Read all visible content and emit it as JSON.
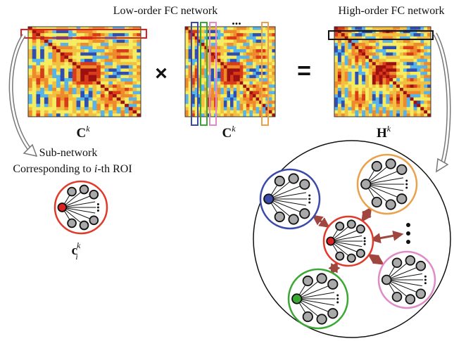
{
  "titles": {
    "low_order": "Low-order FC network",
    "high_order": "High-order FC network"
  },
  "operators": {
    "times": "×",
    "equals": "="
  },
  "ellipsis": "...",
  "matrix_labels": [
    {
      "base": "C",
      "sup": "k"
    },
    {
      "base": "C",
      "sup": "k"
    },
    {
      "base": "H",
      "sup": "k"
    }
  ],
  "subnetwork": {
    "line1": "Sub-network",
    "line2": {
      "prefix": "Corresponding to ",
      "italic": "i",
      "suffix": "-th ROI"
    },
    "label": {
      "base": "c",
      "sub": "i",
      "sup": "k"
    }
  }
}
